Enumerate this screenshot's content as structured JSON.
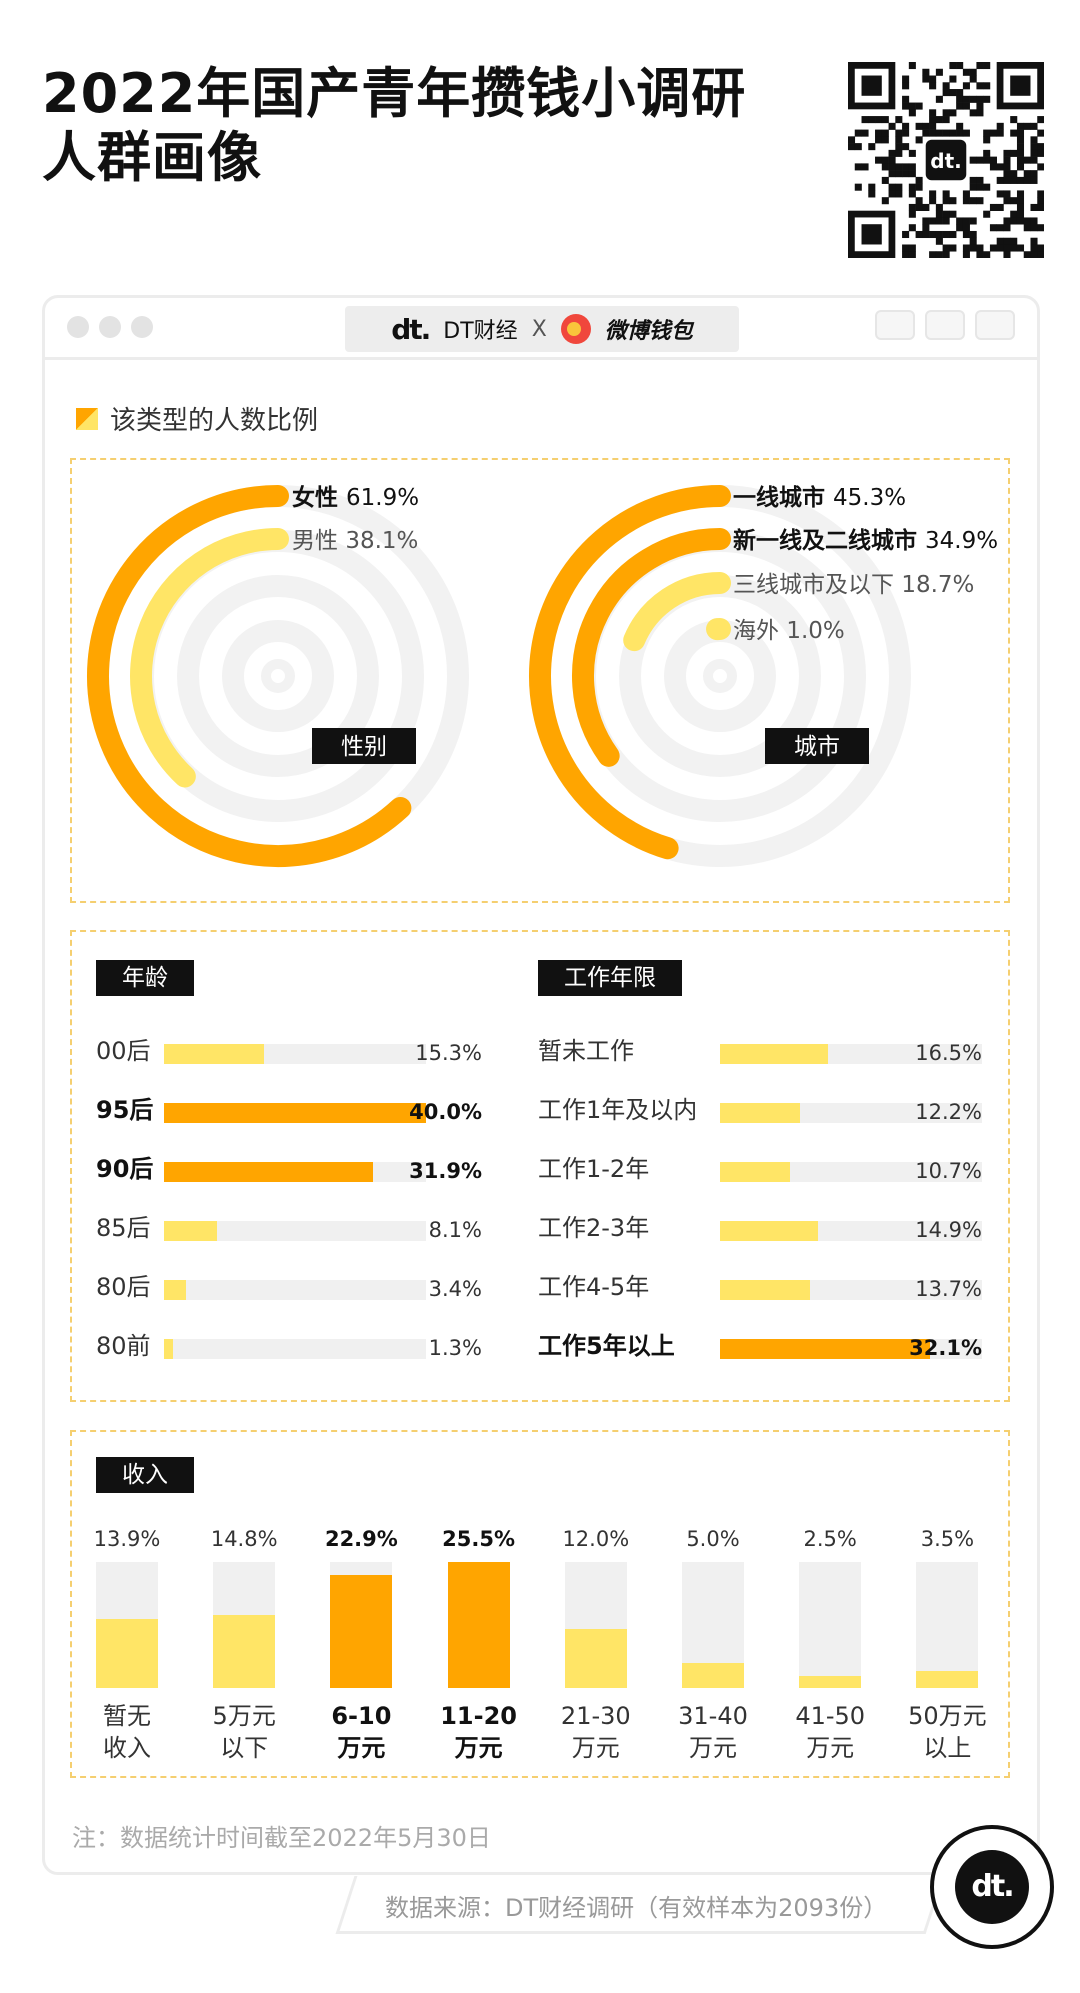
{
  "header": {
    "title_line1": "2022年国产青年攒钱小调研",
    "title_line2": "人群画像"
  },
  "window": {
    "brand_left": "DT财经",
    "brand_x": "X",
    "brand_right": "微博钱包",
    "dt_logo_text": "dt."
  },
  "legend": {
    "text": "该类型的人数比例"
  },
  "colors": {
    "primary": "#ffa500",
    "secondary": "#ffe566",
    "track": "#f0f0f0",
    "ring_bg": "#f2f2f2"
  },
  "chart_data": [
    {
      "type": "pie",
      "title": "性别",
      "series": [
        {
          "name": "女性",
          "value": 61.9,
          "label": "61.9%",
          "emphasis": true
        },
        {
          "name": "男性",
          "value": 38.1,
          "label": "38.1%",
          "emphasis": false
        }
      ]
    },
    {
      "type": "pie",
      "title": "城市",
      "series": [
        {
          "name": "一线城市",
          "value": 45.3,
          "label": "45.3%",
          "emphasis": true
        },
        {
          "name": "新一线及二线城市",
          "value": 34.9,
          "label": "34.9%",
          "emphasis": true
        },
        {
          "name": "三线城市及以下",
          "value": 18.7,
          "label": "18.7%",
          "emphasis": false
        },
        {
          "name": "海外",
          "value": 1.0,
          "label": "1.0%",
          "emphasis": false
        }
      ]
    },
    {
      "type": "bar",
      "title": "年龄",
      "categories": [
        "00后",
        "95后",
        "90后",
        "85后",
        "80后",
        "80前"
      ],
      "values": [
        15.3,
        40.0,
        31.9,
        8.1,
        3.4,
        1.3
      ],
      "labels": [
        "15.3%",
        "40.0%",
        "31.9%",
        "8.1%",
        "3.4%",
        "1.3%"
      ],
      "emphasis": [
        false,
        true,
        true,
        false,
        false,
        false
      ],
      "xlim": [
        0,
        40
      ]
    },
    {
      "type": "bar",
      "title": "工作年限",
      "categories": [
        "暂未工作",
        "工作1年及以内",
        "工作1-2年",
        "工作2-3年",
        "工作4-5年",
        "工作5年以上"
      ],
      "values": [
        16.5,
        12.2,
        10.7,
        14.9,
        13.7,
        32.1
      ],
      "labels": [
        "16.5%",
        "12.2%",
        "10.7%",
        "14.9%",
        "13.7%",
        "32.1%"
      ],
      "emphasis": [
        false,
        false,
        false,
        false,
        false,
        true
      ],
      "xlim": [
        0,
        40
      ]
    },
    {
      "type": "bar",
      "title": "收入",
      "categories": [
        [
          "暂无",
          "收入"
        ],
        [
          "5万元",
          "以下"
        ],
        [
          "6-10",
          "万元"
        ],
        [
          "11-20",
          "万元"
        ],
        [
          "21-30",
          "万元"
        ],
        [
          "31-40",
          "万元"
        ],
        [
          "41-50",
          "万元"
        ],
        [
          "50万元",
          "以上"
        ]
      ],
      "values": [
        13.9,
        14.8,
        22.9,
        25.5,
        12.0,
        5.0,
        2.5,
        3.5
      ],
      "labels": [
        "13.9%",
        "14.8%",
        "22.9%",
        "25.5%",
        "12.0%",
        "5.0%",
        "2.5%",
        "3.5%"
      ],
      "emphasis": [
        false,
        false,
        true,
        true,
        false,
        false,
        false,
        false
      ],
      "ylim": [
        0,
        25.5
      ]
    }
  ],
  "footer": {
    "note": "注：数据统计时间截至2022年5月30日",
    "source": "数据来源：DT财经调研（有效样本为2093份）",
    "corner_logo": "dt."
  }
}
